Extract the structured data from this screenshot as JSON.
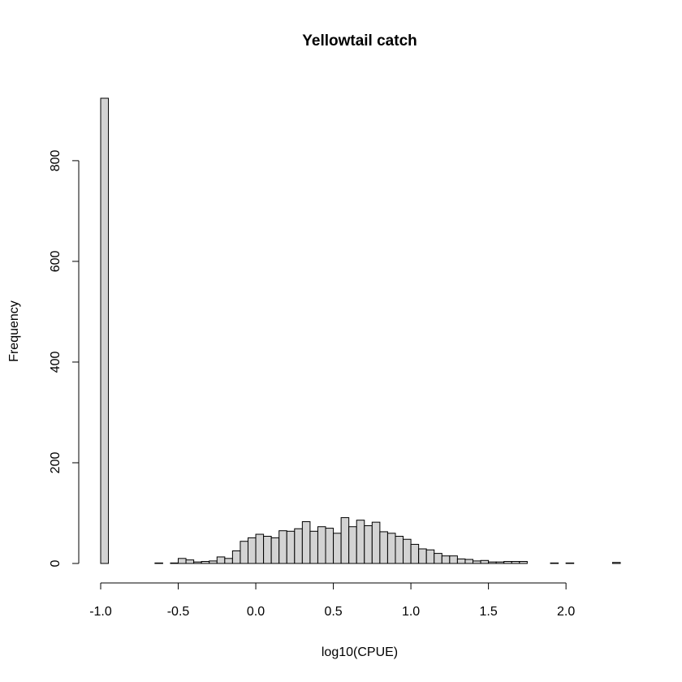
{
  "chart_data": {
    "type": "histogram",
    "title": "Yellowtail catch",
    "x_label": "log10(CPUE)",
    "y_label": "Frequency",
    "bins": [
      -1.0,
      -0.95,
      -0.9,
      -0.85,
      -0.8,
      -0.75,
      -0.7,
      -0.65,
      -0.6,
      -0.55,
      -0.5,
      -0.45,
      -0.4,
      -0.35,
      -0.3,
      -0.25,
      -0.2,
      -0.15,
      -0.1,
      -0.05,
      0,
      0.05,
      0.1,
      0.15,
      0.2,
      0.25,
      0.3,
      0.35,
      0.4,
      0.45,
      0.5,
      0.55,
      0.6,
      0.65,
      0.7,
      0.75,
      0.8,
      0.85,
      0.9,
      0.95,
      1.0,
      1.05,
      1.1,
      1.15,
      1.2,
      1.25,
      1.3,
      1.35,
      1.4,
      1.45,
      1.5,
      1.55,
      1.6,
      1.65,
      1.7,
      1.75,
      1.8,
      1.85,
      1.9,
      1.95,
      2.0,
      2.05,
      2.1,
      2.15,
      2.2,
      2.25,
      2.3,
      2.35
    ],
    "values": [
      924,
      0,
      0,
      0,
      0,
      0,
      0,
      1,
      0,
      1,
      10,
      7,
      3,
      4,
      5,
      13,
      10,
      25,
      44,
      51,
      58,
      54,
      51,
      65,
      64,
      69,
      83,
      64,
      73,
      70,
      60,
      91,
      73,
      86,
      75,
      82,
      63,
      60,
      54,
      48,
      38,
      29,
      27,
      20,
      15,
      15,
      9,
      8,
      5,
      6,
      3,
      3,
      4,
      4,
      4,
      0,
      0,
      0,
      1,
      0,
      1,
      0,
      0,
      0,
      0,
      0,
      2
    ],
    "color": "#d3d3d3",
    "edge_color": "#000000",
    "xlim": [
      -1.0,
      2.35
    ],
    "ylim": [
      0,
      924
    ],
    "xticks": [
      {
        "value": -1,
        "label": "-1.0"
      },
      -0.5,
      {
        "value": 0,
        "label": "0.0"
      },
      0.5,
      {
        "value": 1,
        "label": "1.0"
      },
      1.5,
      {
        "value": 2,
        "label": "2.0"
      }
    ],
    "yticks": [
      0,
      200,
      400,
      600,
      800
    ]
  }
}
